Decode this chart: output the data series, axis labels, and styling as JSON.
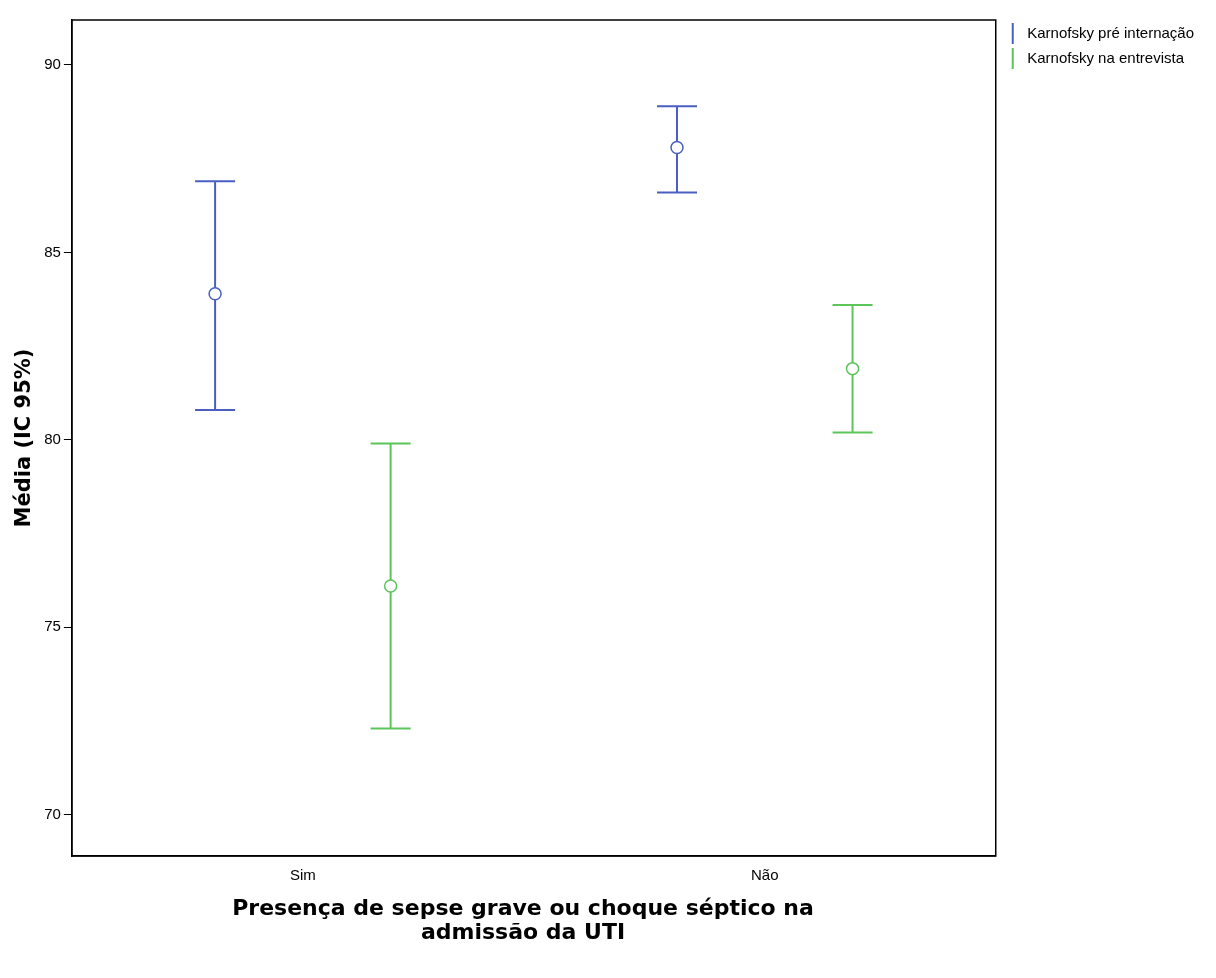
{
  "chart_data": {
    "type": "scatter",
    "xlabel": "Presença de sepse grave ou choque séptico na admissão da UTI",
    "ylabel": "Média (IC 95%)",
    "categories": [
      "Sim",
      "Não"
    ],
    "series": [
      {
        "name": "Karnofsky pré internação",
        "color": "#4a5fc1",
        "values": [
          83.9,
          87.8
        ],
        "errors": [
          [
            80.8,
            86.9
          ],
          [
            86.6,
            88.9
          ]
        ]
      },
      {
        "name": "Karnofsky na entrevista",
        "color": "#5cc55a",
        "values": [
          76.1,
          81.9
        ],
        "errors": [
          [
            72.3,
            79.9
          ],
          [
            80.2,
            83.6
          ]
        ]
      }
    ],
    "ylim": [
      68.9,
      91.2
    ],
    "yticks": [
      70,
      75,
      80,
      85,
      90
    ],
    "grid": false,
    "legend": "top right",
    "marker": "circle"
  }
}
